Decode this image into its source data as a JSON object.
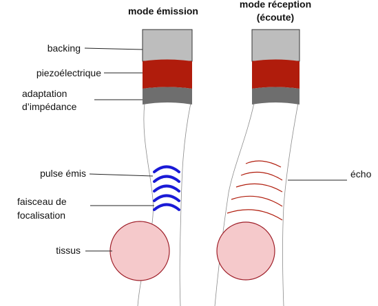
{
  "titles": {
    "emission": "mode émission",
    "reception_line1": "mode réception",
    "reception_line2": "(écoute)"
  },
  "labels": {
    "backing": "backing",
    "piezo": "piezoélectrique",
    "adaptation_line1": "adaptation",
    "adaptation_line2": "d’impédance",
    "pulse": "pulse émis",
    "faisceau_line1": "faisceau de",
    "faisceau_line2": "focalisation",
    "tissus": "tissus",
    "echo": "écho"
  },
  "colors": {
    "backing": "#bdbdbd",
    "piezo": "#b01c0c",
    "adaptation": "#6e6e6e",
    "pulse": "#1a1ad6",
    "echo": "#b01c0c",
    "tissue_fill": "#f5c9cb",
    "tissue_stroke": "#9e1e28",
    "beam": "#8a8a8a",
    "leader": "#222222"
  }
}
